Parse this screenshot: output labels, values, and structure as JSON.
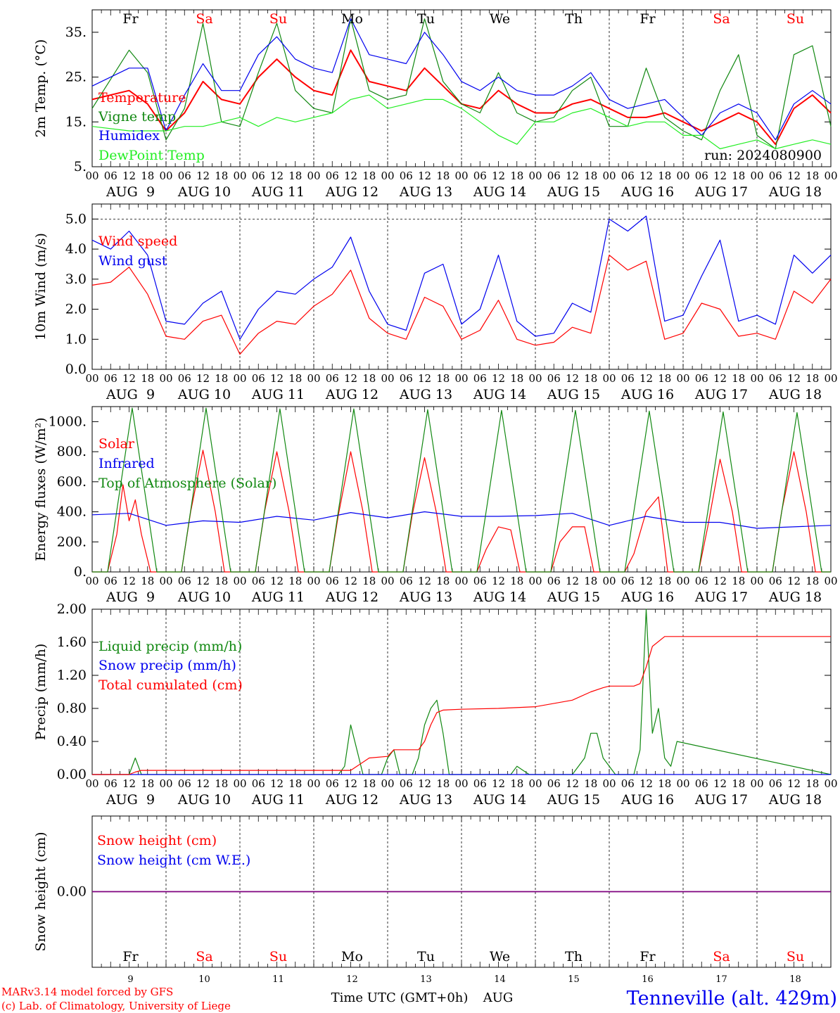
{
  "footer": {
    "model": "MARv3.14 model forced by GFS",
    "lab": "(c) Lab. of Climatology, University of Liege",
    "xlabel": "Time UTC (GMT+0h)",
    "month": "AUG",
    "station": "Tenneville (alt. 429m)"
  },
  "run_label": "run: 2024080900",
  "days": [
    {
      "dow": "Fr",
      "date": "AUG  9",
      "num": "9",
      "weekend": false
    },
    {
      "dow": "Sa",
      "date": "AUG 10",
      "num": "10",
      "weekend": true
    },
    {
      "dow": "Su",
      "date": "AUG 11",
      "num": "11",
      "weekend": true
    },
    {
      "dow": "Mo",
      "date": "AUG 12",
      "num": "12",
      "weekend": false
    },
    {
      "dow": "Tu",
      "date": "AUG 13",
      "num": "13",
      "weekend": false
    },
    {
      "dow": "We",
      "date": "AUG 14",
      "num": "14",
      "weekend": false
    },
    {
      "dow": "Th",
      "date": "AUG 15",
      "num": "15",
      "weekend": false
    },
    {
      "dow": "Fr",
      "date": "AUG 16",
      "num": "16",
      "weekend": false
    },
    {
      "dow": "Sa",
      "date": "AUG 17",
      "num": "17",
      "weekend": true
    },
    {
      "dow": "Su",
      "date": "AUG 18",
      "num": "18",
      "weekend": true
    }
  ],
  "hour_labels": [
    "00",
    "06",
    "12",
    "18"
  ],
  "colors": {
    "red": "#ff0000",
    "green": "#118811",
    "blue": "#0000ee",
    "lime": "#22ee22",
    "purple": "#7f007f",
    "weekend": "#ff0000",
    "text": "#000000"
  },
  "chart_data": [
    {
      "type": "line",
      "ylabel": "2m Temp. (°C)",
      "ylim": [
        5,
        40
      ],
      "yticks": [
        "5.",
        "15.",
        "25.",
        "35."
      ],
      "ytick_values": [
        5,
        15,
        25,
        35
      ],
      "x_unit": "hours since Aug 9 00 UTC",
      "series": [
        {
          "name": "Temperature",
          "color": "red",
          "x": [
            0,
            12,
            18,
            24,
            30,
            36,
            42,
            48,
            54,
            60,
            66,
            72,
            78,
            84,
            90,
            96,
            102,
            108,
            114,
            120,
            126,
            132,
            138,
            144,
            150,
            156,
            162,
            168,
            174,
            180,
            186,
            192,
            198,
            204,
            210,
            216,
            222,
            228,
            234,
            240
          ],
          "values": [
            20,
            22,
            19,
            13,
            17,
            24,
            20,
            19,
            25,
            29,
            25,
            22,
            21,
            31,
            24,
            23,
            22,
            27,
            23,
            19,
            18,
            22,
            19,
            17,
            17,
            19,
            20,
            18,
            16,
            16,
            17,
            15,
            13,
            15,
            17,
            15,
            10,
            18,
            21,
            17
          ]
        },
        {
          "name": "Vigne temp",
          "color": "green",
          "x": [
            0,
            12,
            18,
            24,
            30,
            36,
            42,
            48,
            54,
            60,
            66,
            72,
            78,
            84,
            90,
            96,
            102,
            108,
            114,
            120,
            126,
            132,
            138,
            144,
            150,
            156,
            162,
            168,
            174,
            180,
            186,
            192,
            198,
            204,
            210,
            216,
            222,
            228,
            234,
            240
          ],
          "values": [
            18,
            31,
            26,
            11,
            18,
            37,
            15,
            14,
            26,
            37,
            22,
            18,
            17,
            38,
            22,
            20,
            21,
            38,
            24,
            19,
            17,
            26,
            17,
            15,
            16,
            22,
            25,
            14,
            14,
            27,
            16,
            13,
            11,
            22,
            30,
            12,
            9,
            30,
            32,
            14
          ]
        },
        {
          "name": "Humidex",
          "color": "blue",
          "x": [
            0,
            12,
            18,
            24,
            30,
            36,
            42,
            48,
            54,
            60,
            66,
            72,
            78,
            84,
            90,
            96,
            102,
            108,
            114,
            120,
            126,
            132,
            138,
            144,
            150,
            156,
            162,
            168,
            174,
            180,
            186,
            192,
            198,
            204,
            210,
            216,
            222,
            228,
            234,
            240
          ],
          "values": [
            23,
            27,
            27,
            13,
            21,
            28,
            22,
            22,
            30,
            34,
            29,
            27,
            26,
            38,
            30,
            29,
            28,
            35,
            30,
            24,
            22,
            25,
            22,
            21,
            21,
            23,
            26,
            20,
            18,
            19,
            20,
            16,
            12,
            17,
            19,
            17,
            11,
            19,
            22,
            19
          ]
        },
        {
          "name": "DewPoint Temp",
          "color": "lime",
          "x": [
            0,
            12,
            18,
            24,
            30,
            36,
            42,
            48,
            54,
            60,
            66,
            72,
            78,
            84,
            90,
            96,
            102,
            108,
            114,
            120,
            126,
            132,
            138,
            144,
            150,
            156,
            162,
            168,
            174,
            180,
            186,
            192,
            198,
            204,
            210,
            216,
            222,
            228,
            234,
            240
          ],
          "values": [
            14,
            13,
            13,
            13,
            14,
            14,
            15,
            16,
            14,
            16,
            15,
            16,
            17,
            20,
            21,
            18,
            19,
            20,
            20,
            18,
            15,
            12,
            10,
            15,
            15,
            17,
            18,
            16,
            14,
            15,
            15,
            12,
            12,
            9,
            10,
            11,
            9,
            10,
            11,
            10
          ]
        }
      ]
    },
    {
      "type": "line",
      "ylabel": "10m Wind (m/s)",
      "ylim": [
        0,
        5.5
      ],
      "yticks": [
        "0.0",
        "1.0",
        "2.0",
        "3.0",
        "4.0",
        "5.0"
      ],
      "ytick_values": [
        0,
        1,
        2,
        3,
        4,
        5
      ],
      "dashed_ref": 5,
      "x_unit": "hours since Aug 9 00 UTC",
      "series": [
        {
          "name": "Wind speed",
          "color": "red",
          "x": [
            0,
            6,
            12,
            18,
            24,
            30,
            36,
            42,
            48,
            54,
            60,
            66,
            72,
            78,
            84,
            90,
            96,
            102,
            108,
            114,
            120,
            126,
            132,
            138,
            144,
            150,
            156,
            162,
            168,
            174,
            180,
            186,
            192,
            198,
            204,
            210,
            216,
            222,
            228,
            234,
            240
          ],
          "values": [
            2.8,
            2.9,
            3.4,
            2.5,
            1.1,
            1.0,
            1.6,
            1.8,
            0.5,
            1.2,
            1.6,
            1.5,
            2.1,
            2.5,
            3.3,
            1.7,
            1.2,
            1.0,
            2.4,
            2.1,
            1.0,
            1.3,
            2.3,
            1.0,
            0.8,
            0.9,
            1.4,
            1.2,
            3.8,
            3.3,
            3.6,
            1.0,
            1.2,
            2.2,
            2.0,
            1.1,
            1.2,
            1.0,
            2.6,
            2.2,
            3.0
          ]
        },
        {
          "name": "Wind gust",
          "color": "blue",
          "x": [
            0,
            6,
            12,
            18,
            24,
            30,
            36,
            42,
            48,
            54,
            60,
            66,
            72,
            78,
            84,
            90,
            96,
            102,
            108,
            114,
            120,
            126,
            132,
            138,
            144,
            150,
            156,
            162,
            168,
            174,
            180,
            186,
            192,
            198,
            204,
            210,
            216,
            222,
            228,
            234,
            240
          ],
          "values": [
            4.3,
            4.0,
            4.6,
            3.8,
            1.6,
            1.5,
            2.2,
            2.6,
            1.0,
            2.0,
            2.6,
            2.5,
            3.0,
            3.4,
            4.4,
            2.6,
            1.5,
            1.3,
            3.2,
            3.5,
            1.5,
            2.0,
            3.8,
            1.6,
            1.1,
            1.2,
            2.2,
            1.9,
            5.0,
            4.6,
            5.1,
            1.6,
            1.8,
            3.1,
            4.3,
            1.6,
            1.8,
            1.5,
            3.8,
            3.2,
            3.8
          ]
        }
      ]
    },
    {
      "type": "line",
      "ylabel": "Energy fluxes (W/m²)",
      "ylim": [
        0,
        1100
      ],
      "yticks": [
        "0.",
        "200.",
        "400.",
        "600.",
        "800.",
        "1000."
      ],
      "ytick_values": [
        0,
        200,
        400,
        600,
        800,
        1000
      ],
      "x_unit": "hours since Aug 9 00 UTC",
      "series": [
        {
          "name": "Solar",
          "color": "red",
          "x": [
            0,
            5,
            8,
            10,
            12,
            14,
            16,
            19,
            24,
            29,
            32,
            36,
            40,
            43,
            48,
            53,
            56,
            60,
            64,
            67,
            72,
            77,
            80,
            84,
            88,
            91,
            96,
            101,
            104,
            108,
            112,
            115,
            120,
            125,
            128,
            132,
            136,
            139,
            144,
            149,
            152,
            156,
            160,
            163,
            168,
            173,
            176,
            180,
            184,
            187,
            192,
            197,
            200,
            204,
            208,
            211,
            216,
            221,
            224,
            228,
            232,
            235,
            240
          ],
          "values": [
            0,
            0,
            250,
            580,
            340,
            480,
            250,
            0,
            0,
            0,
            400,
            810,
            400,
            0,
            0,
            0,
            400,
            800,
            400,
            0,
            0,
            0,
            380,
            800,
            400,
            0,
            0,
            0,
            380,
            760,
            380,
            0,
            0,
            0,
            150,
            300,
            280,
            0,
            0,
            0,
            200,
            300,
            300,
            0,
            0,
            0,
            120,
            400,
            500,
            0,
            0,
            0,
            300,
            750,
            400,
            0,
            0,
            0,
            400,
            800,
            400,
            0,
            0
          ]
        },
        {
          "name": "Infrared",
          "color": "blue",
          "x": [
            0,
            12,
            24,
            36,
            48,
            60,
            72,
            84,
            96,
            108,
            120,
            132,
            144,
            156,
            168,
            180,
            192,
            204,
            216,
            228,
            240
          ],
          "values": [
            380,
            390,
            310,
            340,
            330,
            370,
            345,
            395,
            360,
            400,
            370,
            370,
            375,
            390,
            310,
            370,
            330,
            330,
            290,
            300,
            310
          ]
        },
        {
          "name": "Top of Atmosphere (Solar)",
          "color": "green",
          "x": [
            0,
            5,
            13,
            21,
            24,
            29,
            37,
            45,
            48,
            53,
            61,
            69,
            72,
            77,
            85,
            93,
            96,
            101,
            109,
            117,
            120,
            125,
            133,
            141,
            144,
            149,
            157,
            165,
            168,
            173,
            181,
            189,
            192,
            197,
            205,
            213,
            216,
            221,
            229,
            237,
            240
          ],
          "values": [
            0,
            0,
            1090,
            0,
            0,
            0,
            1090,
            0,
            0,
            0,
            1085,
            0,
            0,
            0,
            1085,
            0,
            0,
            0,
            1080,
            0,
            0,
            0,
            1075,
            0,
            0,
            0,
            1075,
            0,
            0,
            0,
            1070,
            0,
            0,
            0,
            1065,
            0,
            0,
            0,
            1060,
            0,
            0
          ]
        }
      ]
    },
    {
      "type": "line",
      "ylabel": "Precip (mm/h)",
      "ylim": [
        0,
        2.0
      ],
      "yticks": [
        "0.00",
        "0.40",
        "0.80",
        "1.20",
        "1.60",
        "2.00"
      ],
      "ytick_values": [
        0,
        0.4,
        0.8,
        1.2,
        1.6,
        2.0
      ],
      "x_unit": "hours since Aug 9 00 UTC",
      "series": [
        {
          "name": "Liquid precip (mm/h)",
          "color": "green",
          "x": [
            0,
            12,
            14,
            16,
            18,
            80,
            82,
            84,
            86,
            88,
            94,
            96,
            98,
            100,
            104,
            106,
            108,
            110,
            112,
            114,
            116,
            120,
            136,
            138,
            140,
            142,
            144,
            156,
            160,
            162,
            164,
            166,
            170,
            176,
            178,
            180,
            182,
            184,
            186,
            188,
            190,
            240
          ],
          "values": [
            0,
            0,
            0.2,
            0,
            0,
            0,
            0.1,
            0.6,
            0.3,
            0,
            0,
            0.2,
            0.3,
            0,
            0,
            0.2,
            0.6,
            0.8,
            0.9,
            0.5,
            0,
            0,
            0,
            0.1,
            0.05,
            0,
            0,
            0,
            0.2,
            0.5,
            0.5,
            0.2,
            0,
            0,
            0.3,
            2.0,
            0.5,
            0.8,
            0.2,
            0.1,
            0.4,
            0
          ]
        },
        {
          "name": "Snow precip (mm/h)",
          "color": "blue",
          "x": [
            0,
            240
          ],
          "values": [
            0,
            0
          ]
        },
        {
          "name": "Total cumulated (cm)",
          "color": "red",
          "x": [
            0,
            12,
            14,
            16,
            84,
            86,
            90,
            96,
            98,
            106,
            108,
            110,
            112,
            114,
            120,
            132,
            144,
            156,
            162,
            166,
            168,
            176,
            178,
            180,
            182,
            186,
            240
          ],
          "values": [
            0,
            0,
            0.03,
            0.05,
            0.05,
            0.1,
            0.2,
            0.22,
            0.3,
            0.3,
            0.4,
            0.6,
            0.75,
            0.78,
            0.79,
            0.8,
            0.82,
            0.9,
            1.0,
            1.05,
            1.07,
            1.07,
            1.1,
            1.3,
            1.55,
            1.67,
            1.67
          ]
        }
      ]
    },
    {
      "type": "line",
      "ylabel": "Snow height (cm)",
      "ylim": [
        -1,
        1
      ],
      "yticks": [
        "0.00"
      ],
      "ytick_values": [
        0
      ],
      "x_unit": "hours since Aug 9 00 UTC",
      "series": [
        {
          "name": "Snow height (cm)",
          "color": "red",
          "x": [
            0,
            240
          ],
          "values": [
            0,
            0
          ]
        },
        {
          "name": "Snow height (cm W.E.)",
          "color": "blue",
          "x": [
            0,
            240
          ],
          "values": [
            0,
            0
          ]
        }
      ]
    }
  ]
}
